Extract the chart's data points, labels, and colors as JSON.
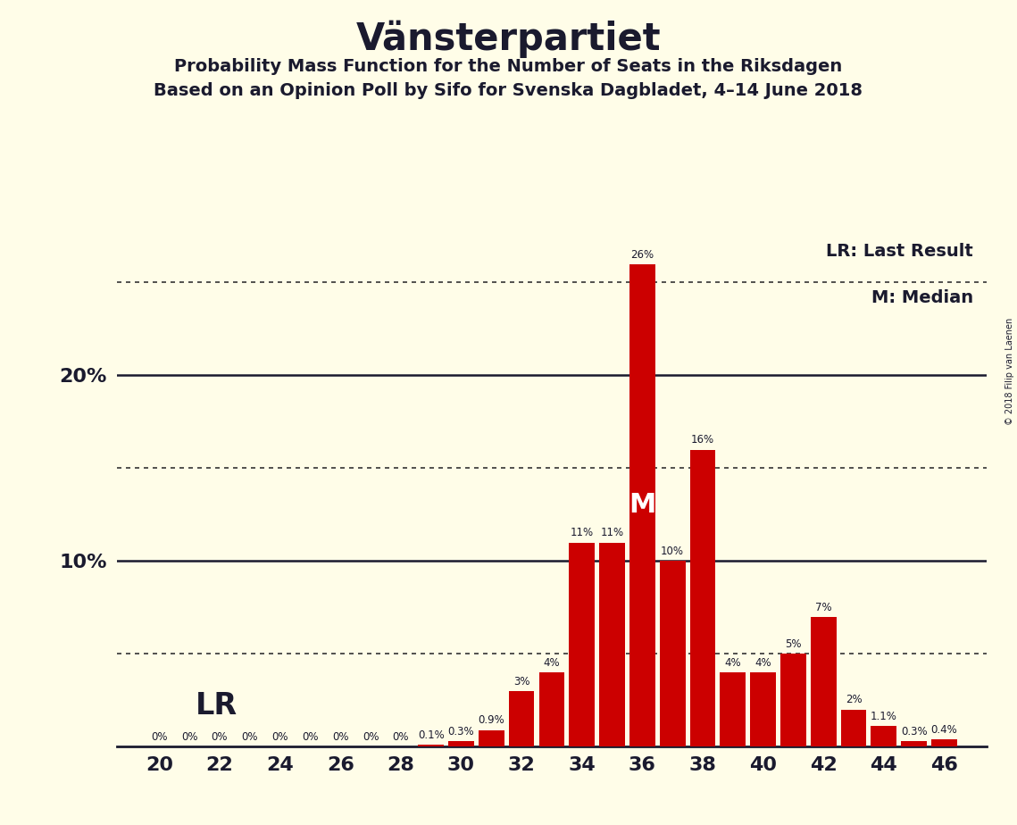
{
  "title": "Vänsterpartiet",
  "subtitle1": "Probability Mass Function for the Number of Seats in the Riksdagen",
  "subtitle2": "Based on an Opinion Poll by Sifo for Svenska Dagbladet, 4–14 June 2018",
  "copyright": "© 2018 Filip van Laenen",
  "seats": [
    20,
    21,
    22,
    23,
    24,
    25,
    26,
    27,
    28,
    29,
    30,
    31,
    32,
    33,
    34,
    35,
    36,
    37,
    38,
    39,
    40,
    41,
    42,
    43,
    44,
    45,
    46
  ],
  "probabilities": [
    0.0,
    0.0,
    0.0,
    0.0,
    0.0,
    0.0,
    0.0,
    0.0,
    0.0,
    0.1,
    0.3,
    0.9,
    3.0,
    4.0,
    11.0,
    11.0,
    26.0,
    10.0,
    16.0,
    4.0,
    4.0,
    5.0,
    7.0,
    2.0,
    1.1,
    0.3,
    0.4
  ],
  "bar_color": "#cc0000",
  "background_color": "#fffde8",
  "text_color": "#1a1a2e",
  "lr_seat": 20,
  "median_seat": 36,
  "lr_label": "LR",
  "median_label": "M",
  "lr_legend": "LR: Last Result",
  "median_legend": "M: Median",
  "ymax": 28,
  "dotted_lines": [
    5.0,
    15.0,
    25.0
  ],
  "solid_lines": [
    10.0,
    20.0
  ],
  "xlabel_seats": [
    20,
    22,
    24,
    26,
    28,
    30,
    32,
    34,
    36,
    38,
    40,
    42,
    44,
    46
  ],
  "bar_width": 0.85,
  "label_fontsize": 8.5,
  "axis_tick_fontsize": 16,
  "title_fontsize": 30,
  "subtitle_fontsize": 14,
  "legend_fontsize": 14,
  "lr_fontsize": 24,
  "median_fontsize": 22
}
